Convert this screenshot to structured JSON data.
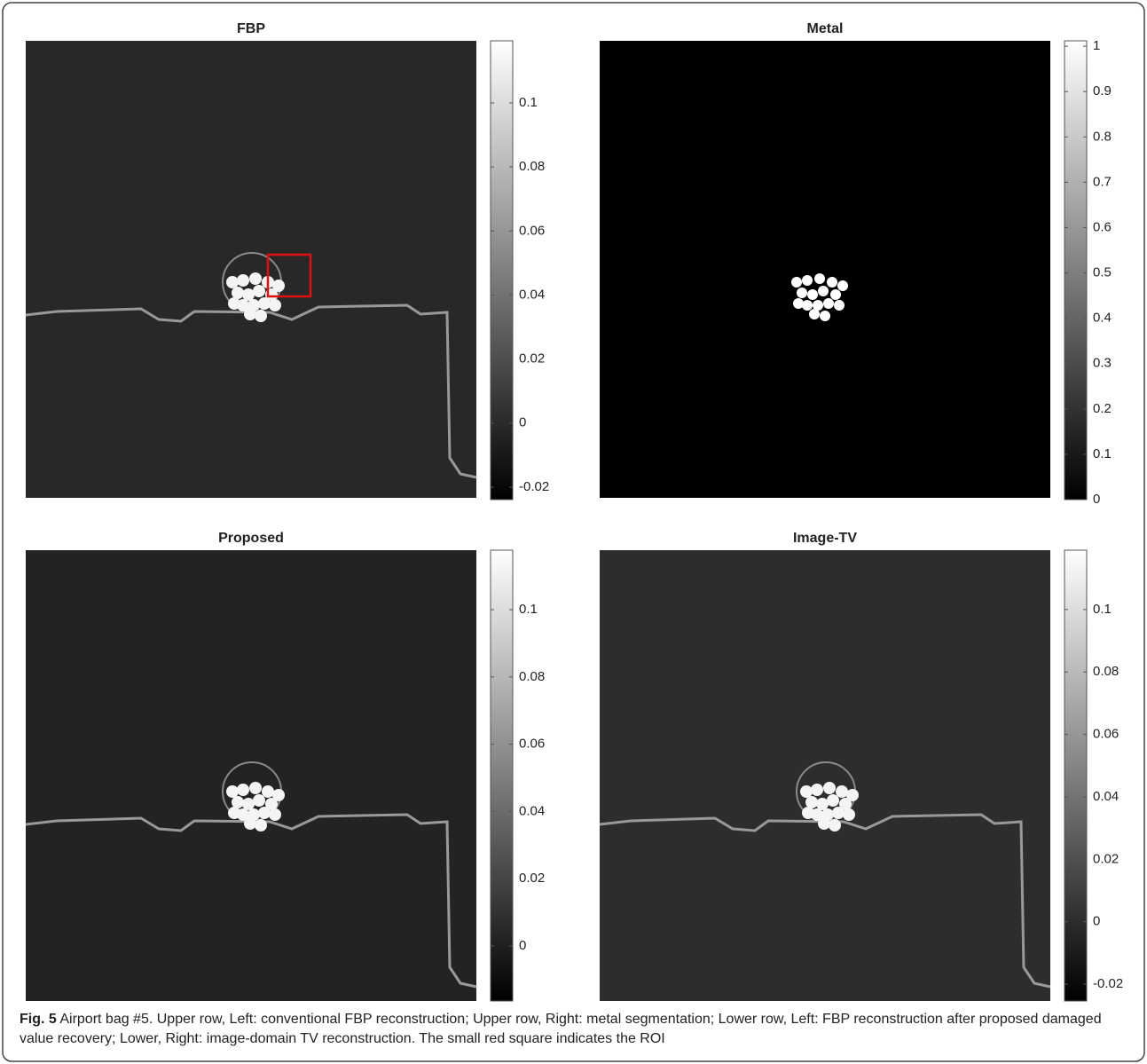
{
  "panels": [
    {
      "title": "FBP",
      "colorbar": {
        "clim": [
          -0.0239,
          0.1194
        ],
        "ticks": [
          -0.02,
          0,
          0.02,
          0.04,
          0.06,
          0.08,
          0.1
        ]
      }
    },
    {
      "title": "Metal",
      "colorbar": {
        "clim": [
          0,
          1.012
        ],
        "ticks": [
          0,
          0.1,
          0.2,
          0.3,
          0.4,
          0.5,
          0.6,
          0.7,
          0.8,
          0.9,
          1
        ]
      }
    },
    {
      "title": "Proposed",
      "colorbar": {
        "clim": [
          -0.0164,
          0.1177
        ],
        "ticks": [
          0,
          0.02,
          0.04,
          0.06,
          0.08,
          0.1
        ]
      }
    },
    {
      "title": "Image-TV",
      "colorbar": {
        "clim": [
          -0.0254,
          0.119
        ],
        "ticks": [
          -0.02,
          0,
          0.02,
          0.04,
          0.06,
          0.08,
          0.1
        ]
      }
    }
  ],
  "caption": {
    "label": "Fig. 5",
    "text": "Airport bag #5. Upper row, Left: conventional FBP reconstruction; Upper row, Right: metal segmentation; Lower row, Left: FBP reconstruction after proposed damaged value recovery; Lower, Right: image-domain TV reconstruction. The small red square indicates the ROI"
  }
}
